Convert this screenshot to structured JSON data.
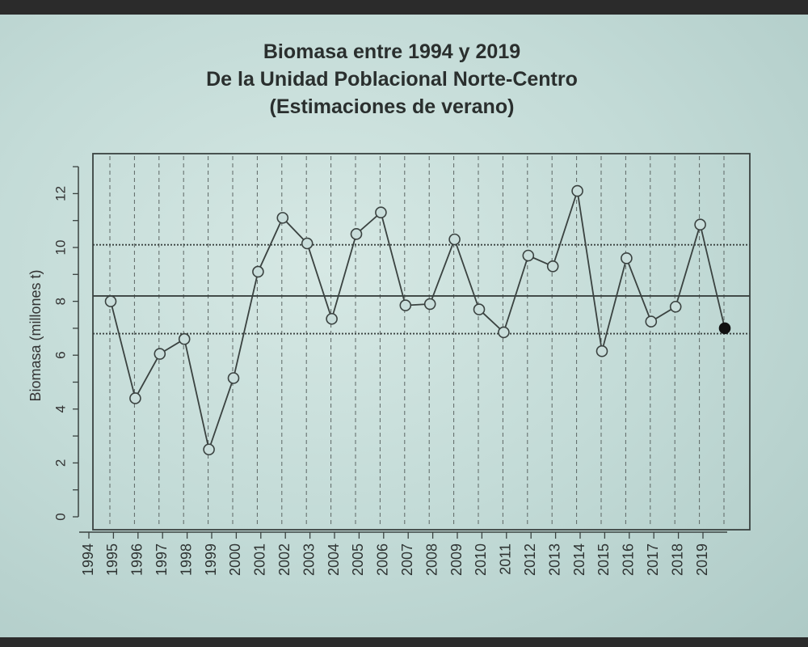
{
  "chart_data": {
    "type": "line",
    "title": [
      "Biomasa entre 1994 y 2019",
      "De la Unidad Poblacional Norte-Centro",
      "(Estimaciones de verano)"
    ],
    "xlabel": "",
    "ylabel": "Biomasa (millones t)",
    "ylim": [
      0,
      13
    ],
    "yticks": [
      "0",
      "2",
      "4",
      "6",
      "8",
      "10",
      "12"
    ],
    "categories": [
      "1994",
      "1995",
      "1996",
      "1997",
      "1998",
      "1999",
      "2000",
      "2001",
      "2002",
      "2003",
      "2004",
      "2005",
      "2006",
      "2007",
      "2008",
      "2009",
      "2010",
      "2011",
      "2012",
      "2013",
      "2014",
      "2015",
      "2016",
      "2017",
      "2018",
      "2019"
    ],
    "series": [
      {
        "name": "Biomasa",
        "values": [
          8.0,
          4.4,
          6.05,
          6.6,
          2.5,
          5.15,
          9.1,
          11.1,
          10.15,
          7.35,
          10.5,
          11.3,
          7.85,
          7.9,
          10.3,
          7.7,
          6.85,
          9.7,
          9.3,
          12.1,
          6.15,
          9.6,
          7.25,
          7.8,
          10.85,
          7.0
        ]
      }
    ],
    "last_point_filled": true,
    "reference_lines": {
      "mean": 8.2,
      "upper_dotted": 10.1,
      "lower_dotted": 6.8
    },
    "grid": "vertical dashed",
    "colors": {
      "line": "#3a4240",
      "background": "#c8deda"
    }
  }
}
